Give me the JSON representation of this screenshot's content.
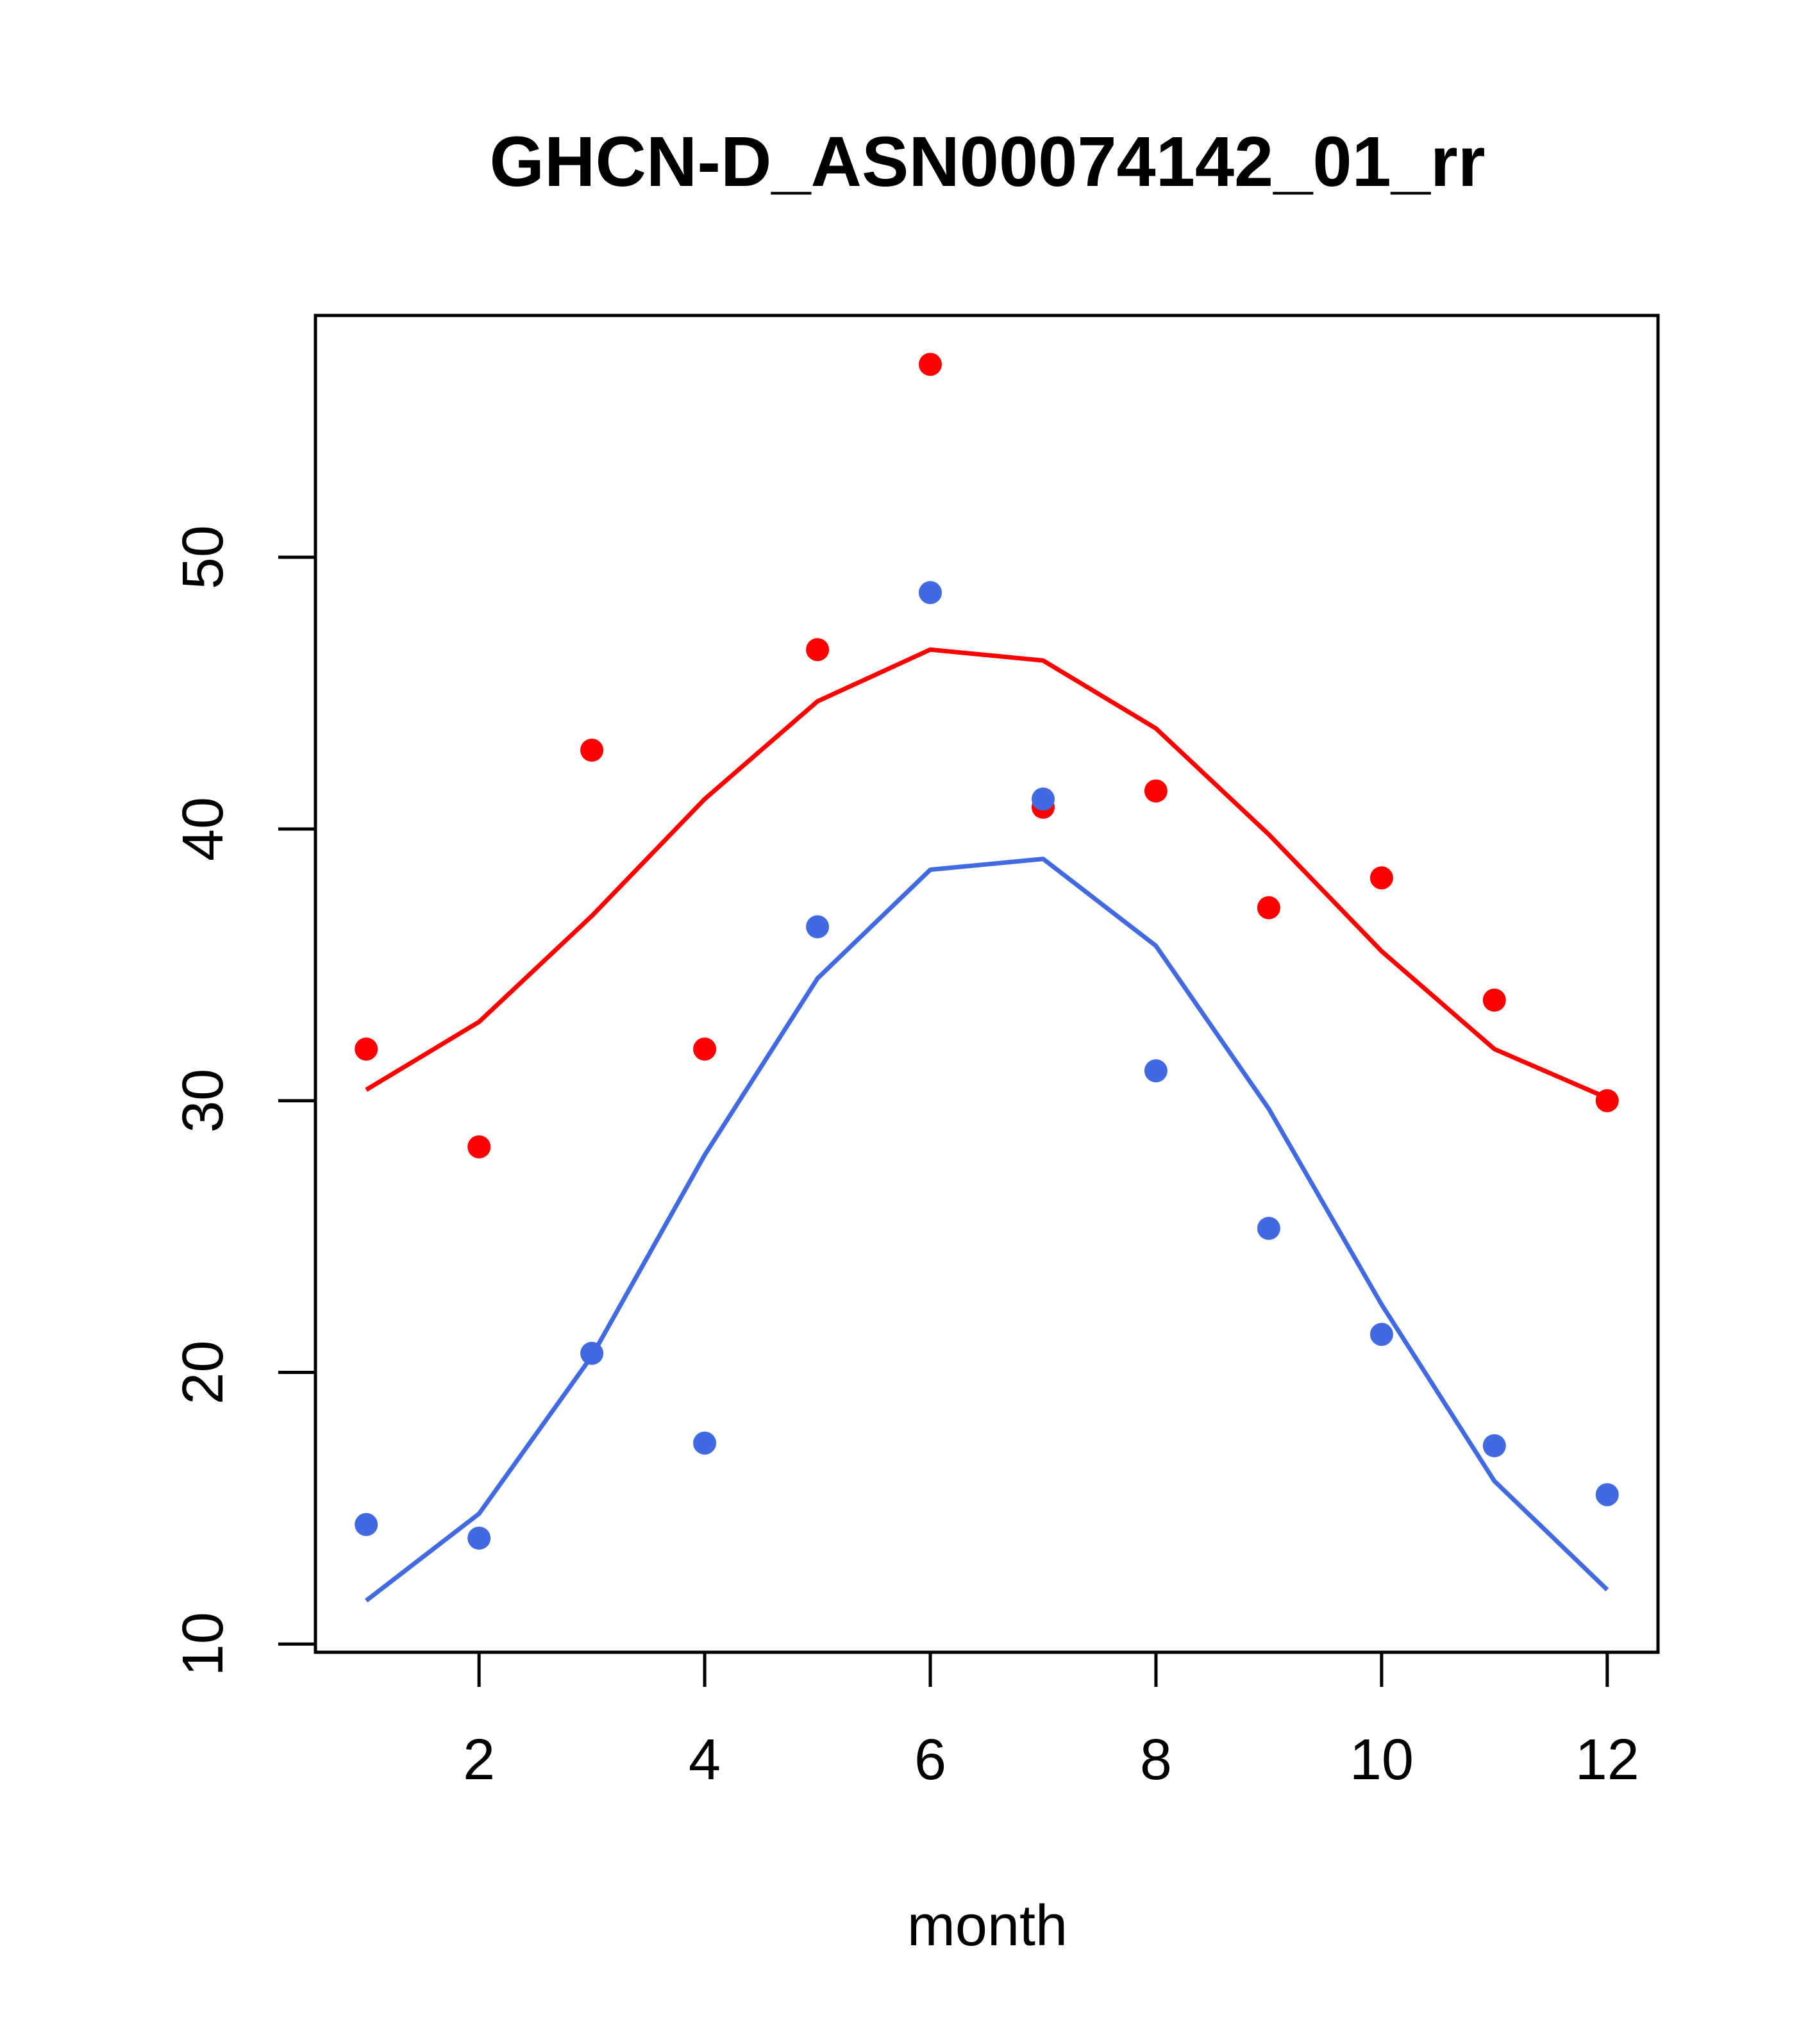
{
  "chart_data": {
    "type": "scatter",
    "title": "GHCN-D_ASN00074142_01_rr",
    "xlabel": "month",
    "ylabel": "",
    "xlim": [
      0.55,
      12.45
    ],
    "ylim": [
      9.7,
      58.9
    ],
    "x_ticks": [
      2,
      4,
      6,
      8,
      10,
      12
    ],
    "y_ticks": [
      10,
      20,
      30,
      40,
      50
    ],
    "grid": false,
    "legend": "none",
    "x": [
      1,
      2,
      3,
      4,
      5,
      6,
      7,
      8,
      9,
      10,
      11,
      12
    ],
    "series": [
      {
        "color": "#FF0000",
        "points": [
          31.9,
          28.3,
          42.9,
          31.9,
          46.6,
          57.1,
          40.8,
          41.4,
          37.1,
          38.2,
          33.7,
          30.0
        ],
        "line": [
          30.4,
          32.9,
          36.8,
          41.1,
          44.7,
          46.6,
          46.2,
          43.7,
          39.8,
          35.5,
          31.9,
          30.1
        ]
      },
      {
        "color": "#4169E1",
        "points": [
          14.4,
          13.9,
          20.7,
          17.4,
          36.4,
          48.7,
          41.1,
          31.1,
          25.3,
          21.4,
          17.3,
          15.5
        ],
        "line": [
          11.6,
          14.8,
          20.6,
          28.0,
          34.5,
          38.5,
          38.9,
          35.7,
          29.7,
          22.5,
          16.0,
          12.0
        ]
      }
    ]
  }
}
